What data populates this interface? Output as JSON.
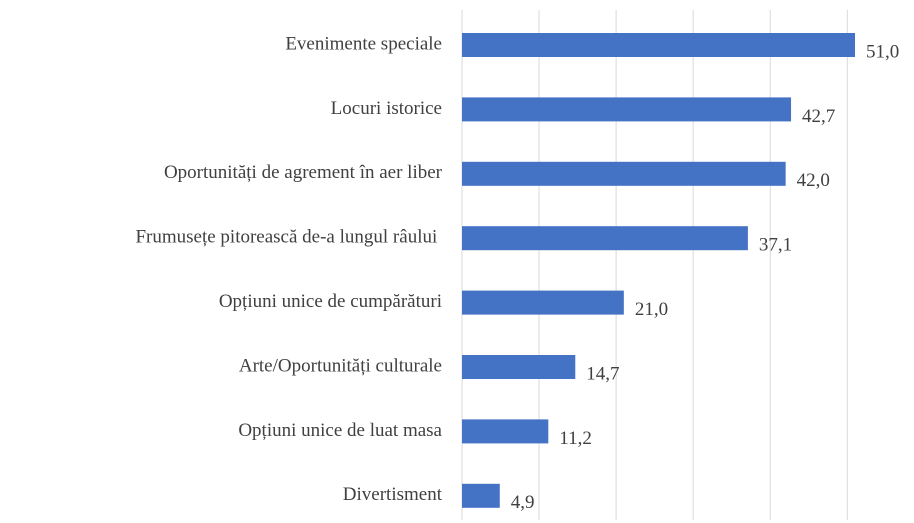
{
  "chart_data": {
    "type": "hbar",
    "categories": [
      "Evenimente speciale",
      "Locuri istorice",
      "Oportunități de agrement în aer liber",
      "Frumusețe pitorească de-a lungul râului ",
      "Opțiuni unice de cumpărături",
      "Arte/Oportunități culturale",
      "Opțiuni unice de luat masa",
      "Divertisment"
    ],
    "values": [
      51.0,
      42.7,
      42.0,
      37.1,
      21.0,
      14.7,
      11.2,
      4.9
    ],
    "value_labels": [
      "51,0",
      "42,7",
      "42,0",
      "37,1",
      "21,0",
      "14,7",
      "11,2",
      "4,9"
    ],
    "color": "#4472c4",
    "xlim": [
      0,
      55
    ],
    "xticks": [
      0,
      10,
      20,
      30,
      40,
      50
    ],
    "grid": true
  }
}
